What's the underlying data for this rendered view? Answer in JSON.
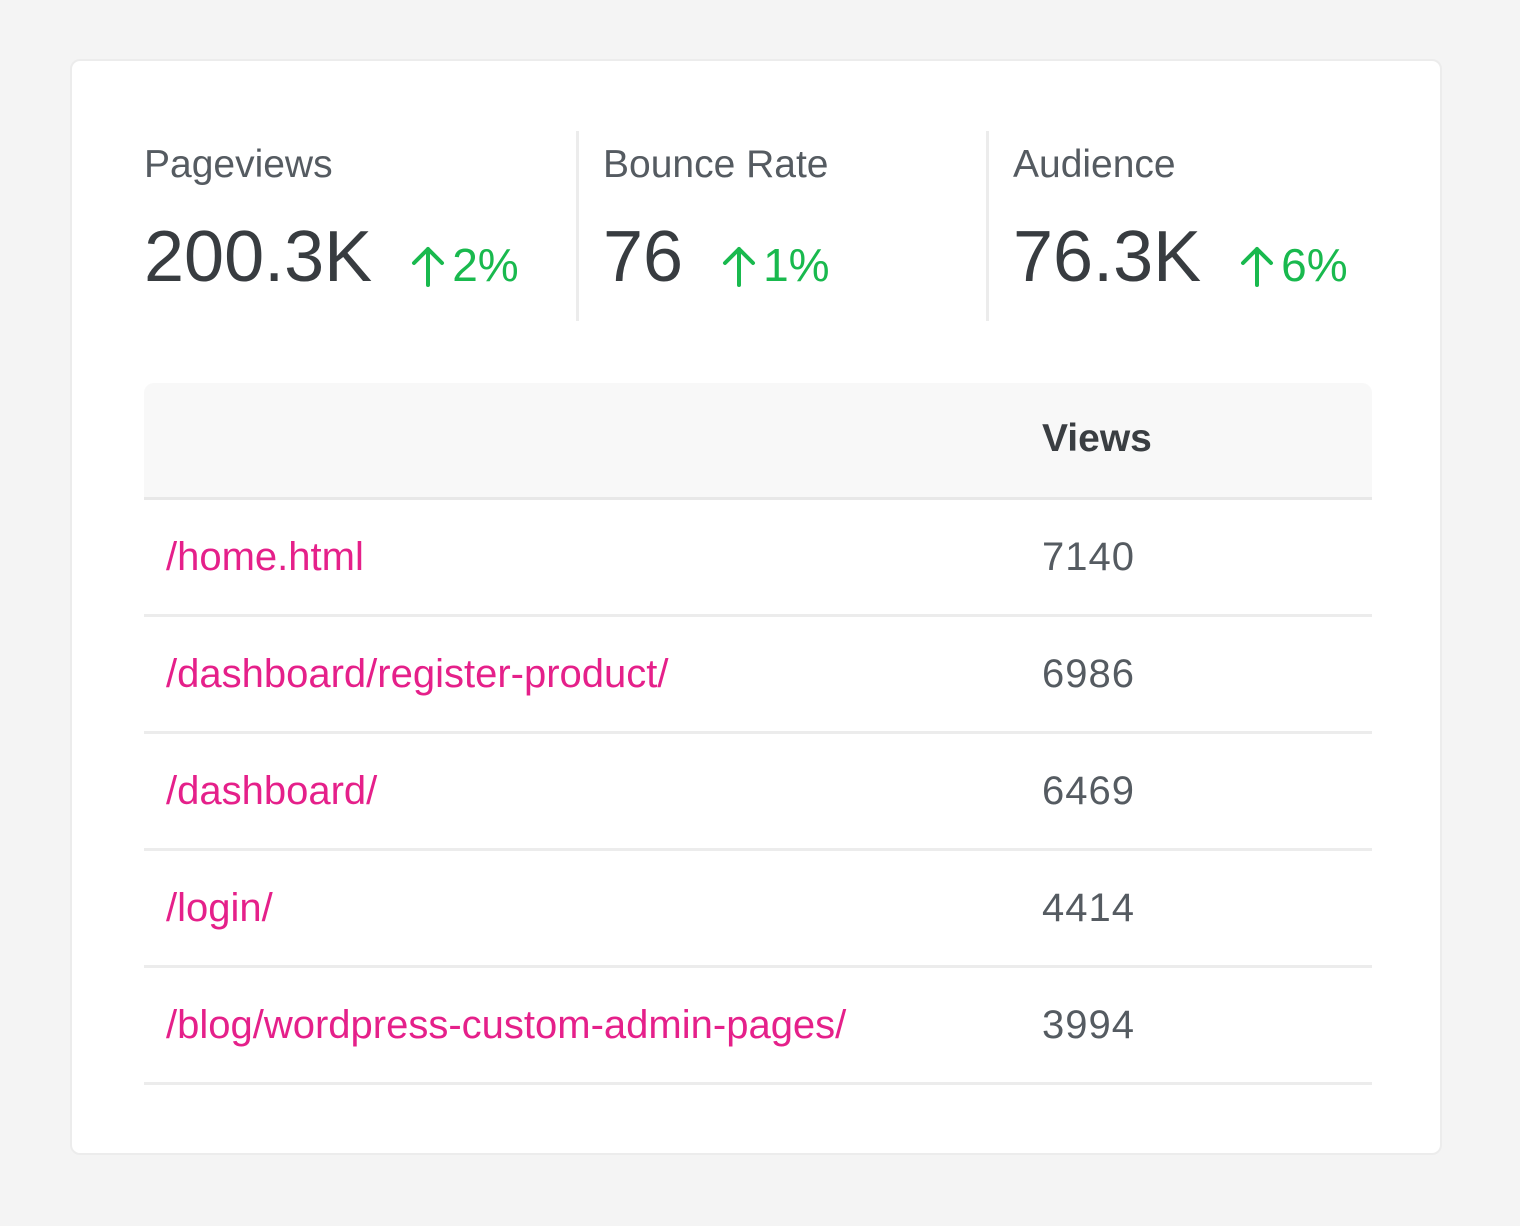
{
  "stats": [
    {
      "label": "Pageviews",
      "value": "200.3K",
      "change": "2%"
    },
    {
      "label": "Bounce Rate",
      "value": "76",
      "change": "1%"
    },
    {
      "label": "Audience",
      "value": "76.3K",
      "change": "6%"
    }
  ],
  "colors": {
    "positive": "#19b94e",
    "link": "#e5208a",
    "text": "#383c40"
  },
  "table": {
    "headers": {
      "path": "",
      "views": "Views"
    },
    "rows": [
      {
        "path": "/home.html",
        "views": "7140"
      },
      {
        "path": "/dashboard/register-product/",
        "views": "6986"
      },
      {
        "path": "/dashboard/",
        "views": "6469"
      },
      {
        "path": "/login/",
        "views": "4414"
      },
      {
        "path": "/blog/wordpress-custom-admin-pages/",
        "views": "3994"
      }
    ]
  }
}
